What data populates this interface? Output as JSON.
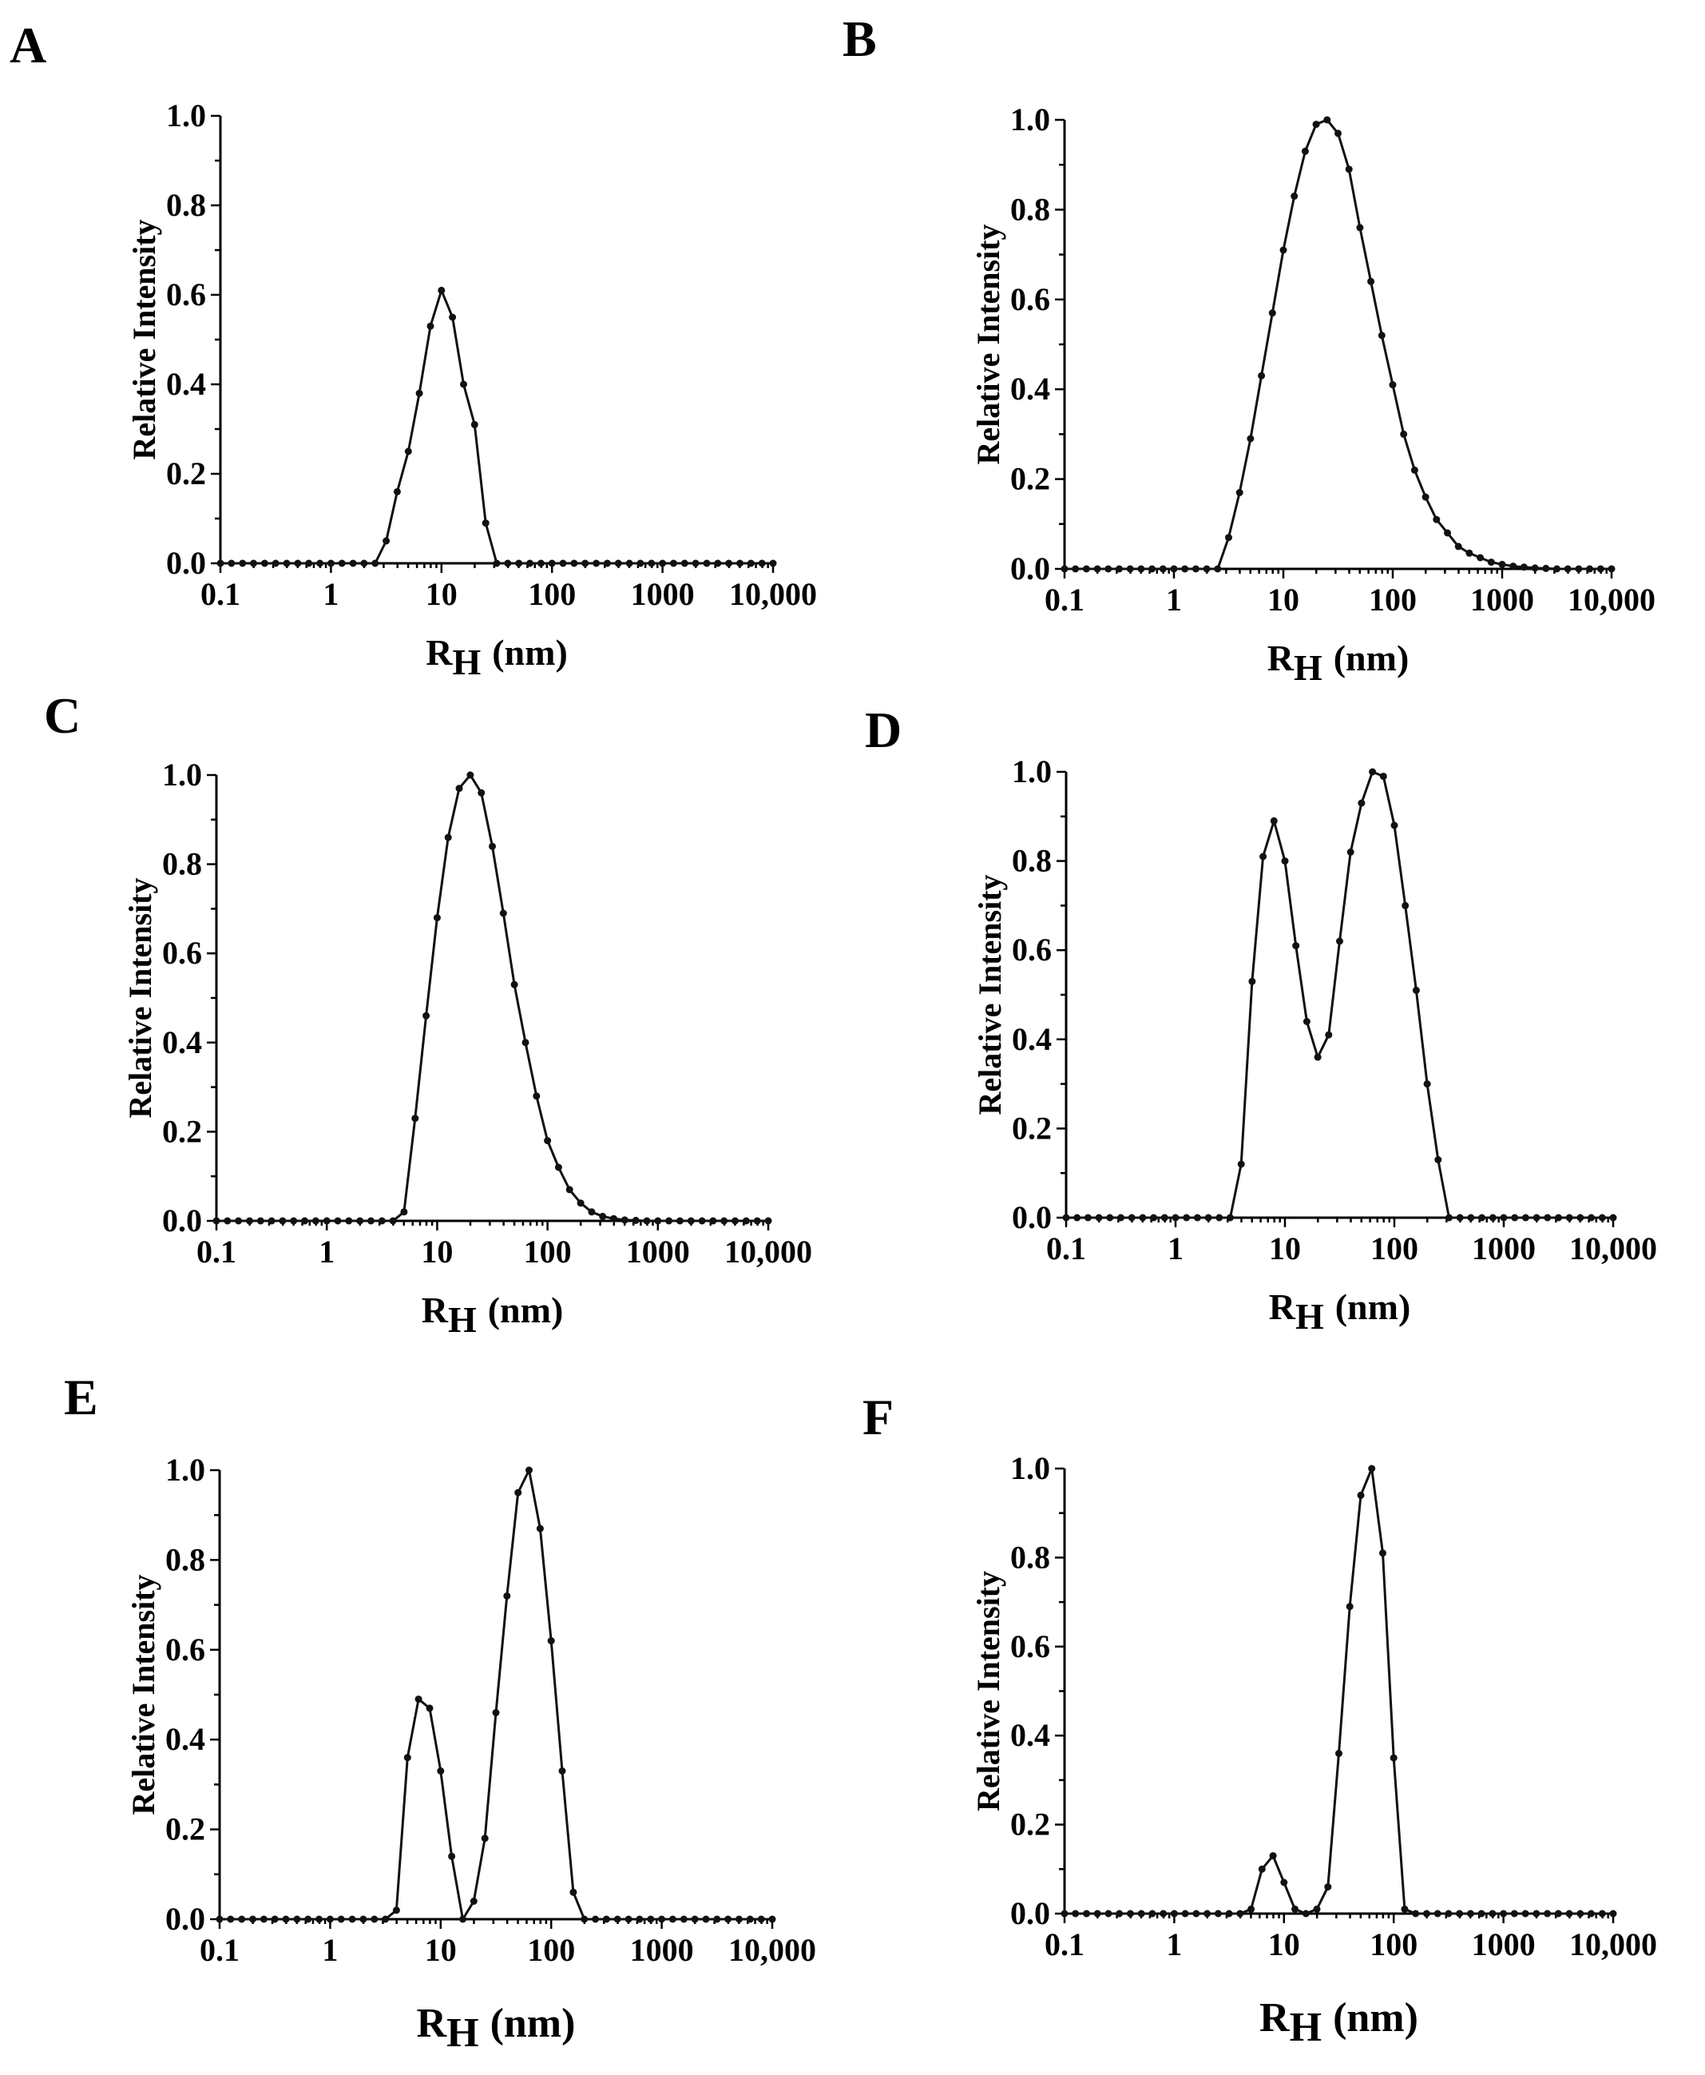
{
  "chart_data": [
    {
      "panel": "A",
      "type": "line",
      "xscale": "log",
      "xlim": [
        0.1,
        10000
      ],
      "ylim": [
        0,
        1.0
      ],
      "x_ticks": [
        "0.1",
        "1",
        "10",
        "100",
        "1000",
        "10,000"
      ],
      "y_ticks": [
        "0.0",
        "0.2",
        "0.4",
        "0.6",
        "0.8",
        "1.0"
      ],
      "xlabel_main": "R",
      "xlabel_sub": "H",
      "xlabel_unit": "(nm)",
      "ylabel": "Relative Intensity",
      "series": [
        {
          "name": "A",
          "x": [
            0.1,
            0.1259,
            0.1585,
            0.1995,
            0.2512,
            0.3162,
            0.3981,
            0.5012,
            0.631,
            0.7943,
            1.0,
            1.259,
            1.585,
            1.995,
            2.512,
            3.162,
            3.981,
            5.012,
            6.31,
            7.943,
            10.0,
            12.59,
            15.85,
            19.95,
            25.12,
            31.62,
            39.81,
            50.12,
            63.1,
            79.43,
            100.0,
            125.9,
            158.5,
            199.5,
            251.2,
            316.2,
            398.1,
            501.2,
            631,
            794.3,
            1000,
            1259,
            1585,
            1995,
            2512,
            3162,
            3981,
            5012,
            6310,
            7943,
            10000
          ],
          "values": [
            0,
            0,
            0,
            0,
            0,
            0,
            0,
            0,
            0,
            0,
            0,
            0,
            0,
            0,
            0,
            0.05,
            0.16,
            0.25,
            0.38,
            0.53,
            0.61,
            0.55,
            0.4,
            0.31,
            0.09,
            0,
            0,
            0,
            0,
            0,
            0,
            0,
            0,
            0,
            0,
            0,
            0,
            0,
            0,
            0,
            0,
            0,
            0,
            0,
            0,
            0,
            0,
            0,
            0,
            0,
            0
          ]
        }
      ]
    },
    {
      "panel": "B",
      "type": "line",
      "xscale": "log",
      "xlim": [
        0.1,
        10000
      ],
      "ylim": [
        0,
        1.0
      ],
      "x_ticks": [
        "0.1",
        "1",
        "10",
        "100",
        "1000",
        "10,000"
      ],
      "y_ticks": [
        "0.0",
        "0.2",
        "0.4",
        "0.6",
        "0.8",
        "1.0"
      ],
      "xlabel_main": "R",
      "xlabel_sub": "H",
      "xlabel_unit": "(nm)",
      "ylabel": "Relative Intensity",
      "series": [
        {
          "name": "B",
          "x": [
            0.1,
            0.1259,
            0.1585,
            0.1995,
            0.2512,
            0.3162,
            0.3981,
            0.5012,
            0.631,
            0.7943,
            1.0,
            1.259,
            1.585,
            1.995,
            2.512,
            3.162,
            3.981,
            5.012,
            6.31,
            7.943,
            10.0,
            12.59,
            15.85,
            19.95,
            25.12,
            31.62,
            39.81,
            50.12,
            63.1,
            79.43,
            100.0,
            125.9,
            158.5,
            199.5,
            251.2,
            316.2,
            398.1,
            501.2,
            631,
            794.3,
            1000,
            1259,
            1585,
            1995,
            2512,
            3162,
            3981,
            5012,
            6310,
            7943,
            10000
          ],
          "values": [
            0,
            0,
            0,
            0,
            0,
            0,
            0,
            0,
            0,
            0,
            0,
            0,
            0,
            0,
            0,
            0.07,
            0.17,
            0.29,
            0.43,
            0.57,
            0.71,
            0.83,
            0.93,
            0.99,
            1.0,
            0.97,
            0.89,
            0.76,
            0.64,
            0.52,
            0.41,
            0.3,
            0.22,
            0.16,
            0.11,
            0.08,
            0.05,
            0.035,
            0.025,
            0.015,
            0.01,
            0.006,
            0.004,
            0.002,
            0.001,
            0,
            0,
            0,
            0,
            0,
            0
          ]
        }
      ]
    },
    {
      "panel": "C",
      "type": "line",
      "xscale": "log",
      "xlim": [
        0.1,
        10000
      ],
      "ylim": [
        0,
        1.0
      ],
      "x_ticks": [
        "0.1",
        "1",
        "10",
        "100",
        "1000",
        "10,000"
      ],
      "y_ticks": [
        "0.0",
        "0.2",
        "0.4",
        "0.6",
        "0.8",
        "1.0"
      ],
      "xlabel_main": "R",
      "xlabel_sub": "H",
      "xlabel_unit": "(nm)",
      "ylabel": "Relative Intensity",
      "series": [
        {
          "name": "C",
          "x": [
            0.1,
            0.1259,
            0.1585,
            0.1995,
            0.2512,
            0.3162,
            0.3981,
            0.5012,
            0.631,
            0.7943,
            1.0,
            1.259,
            1.585,
            1.995,
            2.512,
            3.162,
            3.981,
            5.012,
            6.31,
            7.943,
            10.0,
            12.59,
            15.85,
            19.95,
            25.12,
            31.62,
            39.81,
            50.12,
            63.1,
            79.43,
            100.0,
            125.9,
            158.5,
            199.5,
            251.2,
            316.2,
            398.1,
            501.2,
            631,
            794.3,
            1000,
            1259,
            1585,
            1995,
            2512,
            3162,
            3981,
            5012,
            6310,
            7943,
            10000
          ],
          "values": [
            0,
            0,
            0,
            0,
            0,
            0,
            0,
            0,
            0,
            0,
            0,
            0,
            0,
            0,
            0,
            0,
            0,
            0.02,
            0.23,
            0.46,
            0.68,
            0.86,
            0.97,
            1.0,
            0.96,
            0.84,
            0.69,
            0.53,
            0.4,
            0.28,
            0.18,
            0.12,
            0.07,
            0.04,
            0.02,
            0.01,
            0.005,
            0.002,
            0.001,
            0,
            0,
            0,
            0,
            0,
            0,
            0,
            0,
            0,
            0,
            0,
            0
          ]
        }
      ]
    },
    {
      "panel": "D",
      "type": "line",
      "xscale": "log",
      "xlim": [
        0.1,
        10000
      ],
      "ylim": [
        0,
        1.0
      ],
      "x_ticks": [
        "0.1",
        "1",
        "10",
        "100",
        "1000",
        "10,000"
      ],
      "y_ticks": [
        "0.0",
        "0.2",
        "0.4",
        "0.6",
        "0.8",
        "1.0"
      ],
      "xlabel_main": "R",
      "xlabel_sub": "H",
      "xlabel_unit": "(nm)",
      "ylabel": "Relative Intensity",
      "series": [
        {
          "name": "D",
          "x": [
            0.1,
            0.1259,
            0.1585,
            0.1995,
            0.2512,
            0.3162,
            0.3981,
            0.5012,
            0.631,
            0.7943,
            1.0,
            1.259,
            1.585,
            1.995,
            2.512,
            3.162,
            3.981,
            5.012,
            6.31,
            7.943,
            10.0,
            12.59,
            15.85,
            19.95,
            25.12,
            31.62,
            39.81,
            50.12,
            63.1,
            79.43,
            100.0,
            125.9,
            158.5,
            199.5,
            251.2,
            316.2,
            398.1,
            501.2,
            631,
            794.3,
            1000,
            1259,
            1585,
            1995,
            2512,
            3162,
            3981,
            5012,
            6310,
            7943,
            10000
          ],
          "values": [
            0,
            0,
            0,
            0,
            0,
            0,
            0,
            0,
            0,
            0,
            0,
            0,
            0,
            0,
            0,
            0,
            0.12,
            0.53,
            0.81,
            0.89,
            0.8,
            0.61,
            0.44,
            0.36,
            0.41,
            0.62,
            0.82,
            0.93,
            1.0,
            0.99,
            0.88,
            0.7,
            0.51,
            0.3,
            0.13,
            0,
            0,
            0,
            0,
            0,
            0,
            0,
            0,
            0,
            0,
            0,
            0,
            0,
            0,
            0,
            0
          ]
        }
      ]
    },
    {
      "panel": "E",
      "type": "line",
      "xscale": "log",
      "xlim": [
        0.1,
        10000
      ],
      "ylim": [
        0,
        1.0
      ],
      "x_ticks": [
        "0.1",
        "1",
        "10",
        "100",
        "1000",
        "10,000"
      ],
      "y_ticks": [
        "0.0",
        "0.2",
        "0.4",
        "0.6",
        "0.8",
        "1.0"
      ],
      "xlabel_main": "R",
      "xlabel_sub": "H",
      "xlabel_unit": "(nm)",
      "ylabel": "Relative Intensity",
      "series": [
        {
          "name": "E",
          "x": [
            0.1,
            0.1259,
            0.1585,
            0.1995,
            0.2512,
            0.3162,
            0.3981,
            0.5012,
            0.631,
            0.7943,
            1.0,
            1.259,
            1.585,
            1.995,
            2.512,
            3.162,
            3.981,
            5.012,
            6.31,
            7.943,
            10.0,
            12.59,
            15.85,
            19.95,
            25.12,
            31.62,
            39.81,
            50.12,
            63.1,
            79.43,
            100.0,
            125.9,
            158.5,
            199.5,
            251.2,
            316.2,
            398.1,
            501.2,
            631,
            794.3,
            1000,
            1259,
            1585,
            1995,
            2512,
            3162,
            3981,
            5012,
            6310,
            7943,
            10000
          ],
          "values": [
            0,
            0,
            0,
            0,
            0,
            0,
            0,
            0,
            0,
            0,
            0,
            0,
            0,
            0,
            0,
            0,
            0.02,
            0.36,
            0.49,
            0.47,
            0.33,
            0.14,
            0,
            0.04,
            0.18,
            0.46,
            0.72,
            0.95,
            1.0,
            0.87,
            0.62,
            0.33,
            0.06,
            0,
            0,
            0,
            0,
            0,
            0,
            0,
            0,
            0,
            0,
            0,
            0,
            0,
            0,
            0,
            0,
            0,
            0
          ]
        }
      ]
    },
    {
      "panel": "F",
      "type": "line",
      "xscale": "log",
      "xlim": [
        0.1,
        10000
      ],
      "ylim": [
        0,
        1.0
      ],
      "x_ticks": [
        "0.1",
        "1",
        "10",
        "100",
        "1000",
        "10,000"
      ],
      "y_ticks": [
        "0.0",
        "0.2",
        "0.4",
        "0.6",
        "0.8",
        "1.0"
      ],
      "xlabel_main": "R",
      "xlabel_sub": "H",
      "xlabel_unit": "(nm)",
      "ylabel": "Relative Intensity",
      "series": [
        {
          "name": "F",
          "x": [
            0.1,
            0.1259,
            0.1585,
            0.1995,
            0.2512,
            0.3162,
            0.3981,
            0.5012,
            0.631,
            0.7943,
            1.0,
            1.259,
            1.585,
            1.995,
            2.512,
            3.162,
            3.981,
            5.012,
            6.31,
            7.943,
            10.0,
            12.59,
            15.85,
            19.95,
            25.12,
            31.62,
            39.81,
            50.12,
            63.1,
            79.43,
            100.0,
            125.9,
            158.5,
            199.5,
            251.2,
            316.2,
            398.1,
            501.2,
            631,
            794.3,
            1000,
            1259,
            1585,
            1995,
            2512,
            3162,
            3981,
            5012,
            6310,
            7943,
            10000
          ],
          "values": [
            0,
            0,
            0,
            0,
            0,
            0,
            0,
            0,
            0,
            0,
            0,
            0,
            0,
            0,
            0,
            0,
            0,
            0.01,
            0.1,
            0.13,
            0.07,
            0.01,
            0,
            0.01,
            0.06,
            0.36,
            0.69,
            0.94,
            1.0,
            0.81,
            0.35,
            0.01,
            0,
            0,
            0,
            0,
            0,
            0,
            0,
            0,
            0,
            0,
            0,
            0,
            0,
            0,
            0,
            0,
            0,
            0,
            0
          ]
        }
      ]
    }
  ]
}
